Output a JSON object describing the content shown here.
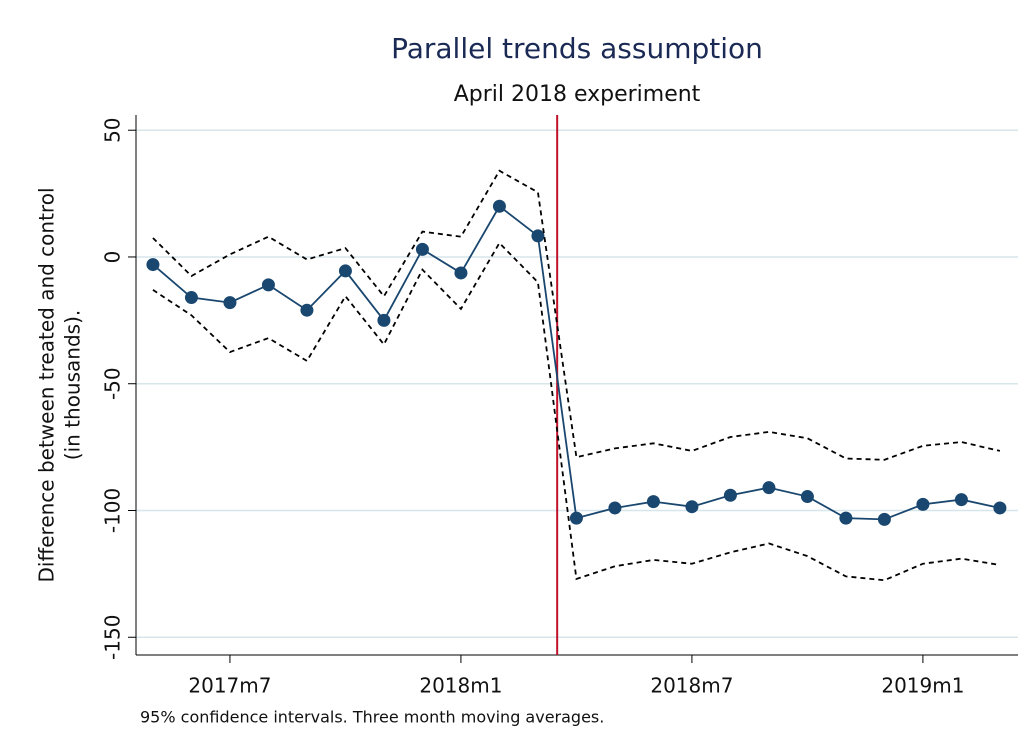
{
  "chart_data": {
    "type": "line",
    "title": "Parallel trends assumption",
    "subtitle": "April 2018 experiment",
    "y_label": [
      "Difference between treated and control",
      "(in thousands)."
    ],
    "note": "95% confidence intervals. Three month moving averages.",
    "x": [
      688,
      689,
      690,
      691,
      692,
      693,
      694,
      695,
      696,
      697,
      698,
      699,
      700,
      701,
      702,
      703,
      704,
      705,
      706,
      707,
      708,
      709,
      710
    ],
    "xlim": [
      687.56,
      710.47
    ],
    "xticks": [
      {
        "value": 690,
        "label": "2017m7"
      },
      {
        "value": 696,
        "label": "2018m1"
      },
      {
        "value": 702,
        "label": "2018m7"
      },
      {
        "value": 708,
        "label": "2019m1"
      }
    ],
    "ylim": [
      -157,
      56
    ],
    "yticks": [
      50,
      0,
      -50,
      -100,
      -150
    ],
    "grid": true,
    "vline": {
      "x": 698.5,
      "color": "#c0102a"
    },
    "series": [
      {
        "color": "#1a476f",
        "style": "solid",
        "markers": true,
        "values": [
          -3,
          -16,
          -18,
          -11,
          -21,
          -5.5,
          -25,
          3,
          -6.3,
          20,
          8.3,
          -103,
          -99,
          -96.5,
          -98.5,
          -94,
          -91,
          -94.5,
          -103,
          -103.5,
          -97.6,
          -95.7,
          -99
        ]
      },
      {
        "color": "#000000",
        "style": "dashed",
        "markers": false,
        "values": [
          7.5,
          -7.5,
          1,
          8,
          -1,
          3.5,
          -15.5,
          10,
          8,
          34,
          25.5,
          -79,
          -75.5,
          -73.5,
          -76.5,
          -71,
          -69,
          -71.5,
          -79.5,
          -80,
          -74.5,
          -73,
          -76.5
        ]
      },
      {
        "color": "#000000",
        "style": "dashed",
        "markers": false,
        "values": [
          -13,
          -23,
          -37.5,
          -32,
          -41,
          -15.5,
          -34.5,
          -5,
          -20.5,
          5.5,
          -10,
          -127,
          -122,
          -119.5,
          -121,
          -116.5,
          -113,
          -118,
          -126,
          -127.5,
          -121,
          -119,
          -121.5
        ]
      }
    ]
  }
}
